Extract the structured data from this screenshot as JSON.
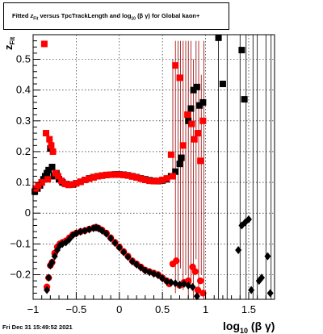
{
  "canvas": {
    "title": "Fitted  z_Fit  versus TpcTrackLength and log10(βγ) for Global kaon+",
    "title_parts": {
      "a": "Fitted ",
      "z": "z",
      "zsub": "Fit",
      "b": " versus TpcTrackLength and log",
      "logsub": "10",
      "c": "(β  γ) for Global kaon+"
    },
    "timestamp": "Fri Dec 31 15:49:52 2021"
  },
  "chart_data": {
    "type": "scatter",
    "title": "Fitted z_Fit versus TpcTrackLength and log10(βγ) for Global kaon+",
    "xlabel": "log10 (β γ)",
    "xlabel_parts": {
      "main": "log",
      "sub": "10",
      "tail": " (β γ)"
    },
    "ylabel": "z_Fit",
    "ylabel_parts": {
      "main": "z",
      "sub": "Fit"
    },
    "xlim": [
      -1.0,
      1.8
    ],
    "ylim": [
      -0.28,
      0.58
    ],
    "xticks": [
      -1,
      -0.5,
      0,
      0.5,
      1,
      1.5
    ],
    "xtick_labels": [
      "−1",
      "−0.5",
      "0",
      "0.5",
      "1",
      "1.5"
    ],
    "yticks": [
      -0.2,
      -0.1,
      0,
      0.1,
      0.2,
      0.3,
      0.4,
      0.5
    ],
    "ytick_labels": [
      "−0.2",
      "−0.1",
      "0",
      "0.1",
      "0.2",
      "0.3",
      "0.4",
      "0.5"
    ],
    "grid": true,
    "colors": {
      "black": "#000000",
      "red": "#ff0000",
      "dark_red": "#990000"
    },
    "series": [
      {
        "marker": "square",
        "color": "#000000",
        "x": [
          -0.98,
          -0.95,
          -0.92,
          -0.9,
          -0.88,
          -0.86,
          -0.84,
          -0.82,
          -0.8,
          -0.78,
          -0.76,
          -0.73,
          -0.7,
          -0.66,
          -0.62,
          -0.58,
          -0.54,
          -0.5,
          -0.45,
          -0.4,
          -0.35,
          -0.3,
          -0.25,
          -0.2,
          -0.15,
          -0.1,
          -0.05,
          0.0,
          0.05,
          0.1,
          0.15,
          0.2,
          0.25,
          0.3,
          0.35,
          0.4,
          0.45,
          0.5,
          0.55,
          0.6,
          0.65,
          0.7,
          0.72,
          0.8,
          0.83,
          0.86,
          0.9,
          0.93,
          0.97,
          1.15,
          1.2,
          1.42,
          1.45
        ],
        "y": [
          0.07,
          0.08,
          0.09,
          0.1,
          0.11,
          0.12,
          0.13,
          0.14,
          0.21,
          0.15,
          0.12,
          0.13,
          0.11,
          0.1,
          0.095,
          0.092,
          0.093,
          0.097,
          0.102,
          0.108,
          0.113,
          0.117,
          0.12,
          0.122,
          0.124,
          0.125,
          0.126,
          0.126,
          0.125,
          0.123,
          0.12,
          0.117,
          0.113,
          0.11,
          0.107,
          0.105,
          0.104,
          0.106,
          0.11,
          0.12,
          0.135,
          0.16,
          0.18,
          0.3,
          0.34,
          0.4,
          0.41,
          0.35,
          0.36,
          0.57,
          0.42,
          0.53,
          0.37
        ]
      },
      {
        "marker": "square",
        "color": "#ff0000",
        "x": [
          -0.97,
          -0.94,
          -0.9,
          -0.87,
          -0.85,
          -0.83,
          -0.81,
          -0.79,
          -0.77,
          -0.74,
          -0.71,
          -0.67,
          -0.63,
          -0.59,
          -0.55,
          -0.5,
          -0.45,
          -0.4,
          -0.35,
          -0.3,
          -0.25,
          -0.2,
          -0.15,
          -0.1,
          -0.05,
          0.0,
          0.05,
          0.1,
          0.15,
          0.2,
          0.25,
          0.3,
          0.35,
          0.4,
          0.45,
          0.5,
          0.55,
          0.6,
          0.62,
          0.65,
          0.7,
          0.74,
          0.79,
          0.84,
          0.87,
          0.91,
          0.94,
          0.97
        ],
        "y": [
          0.08,
          0.09,
          0.1,
          0.55,
          0.26,
          0.11,
          0.24,
          0.22,
          0.2,
          0.13,
          0.12,
          0.105,
          0.095,
          0.092,
          0.093,
          0.097,
          0.102,
          0.108,
          0.112,
          0.116,
          0.12,
          0.122,
          0.124,
          0.125,
          0.125,
          0.125,
          0.124,
          0.122,
          0.119,
          0.116,
          0.112,
          0.108,
          0.105,
          0.104,
          0.105,
          0.108,
          0.113,
          0.19,
          0.12,
          0.48,
          0.44,
          0.22,
          0.32,
          0.29,
          0.24,
          0.26,
          0.17,
          0.3
        ]
      },
      {
        "marker": "circle",
        "color": "#ff0000",
        "x": [
          -0.84,
          -0.82,
          -0.8,
          -0.78,
          -0.75,
          -0.72,
          -0.69,
          -0.66,
          -0.62,
          -0.58,
          -0.54,
          -0.5,
          -0.45,
          -0.4,
          -0.35,
          -0.3,
          -0.27,
          -0.24,
          -0.2,
          -0.15,
          -0.1,
          -0.05,
          0.0,
          0.05,
          0.1,
          0.15,
          0.2,
          0.25,
          0.3,
          0.35,
          0.4,
          0.45,
          0.5,
          0.55,
          0.58,
          0.62,
          0.66,
          0.7,
          0.75,
          0.8,
          0.85,
          0.88,
          0.91,
          0.94,
          0.97
        ],
        "y": [
          -0.24,
          -0.21,
          -0.17,
          -0.16,
          -0.13,
          -0.11,
          -0.1,
          -0.095,
          -0.09,
          -0.08,
          -0.07,
          -0.065,
          -0.06,
          -0.057,
          -0.052,
          -0.048,
          -0.046,
          -0.049,
          -0.055,
          -0.065,
          -0.08,
          -0.095,
          -0.11,
          -0.125,
          -0.14,
          -0.155,
          -0.165,
          -0.175,
          -0.185,
          -0.19,
          -0.195,
          -0.2,
          -0.21,
          -0.22,
          -0.23,
          -0.165,
          -0.155,
          -0.235,
          -0.225,
          -0.22,
          -0.175,
          -0.19,
          -0.25,
          -0.22,
          -0.26
        ]
      },
      {
        "marker": "diamond",
        "color": "#000000",
        "x": [
          -0.84,
          -0.82,
          -0.8,
          -0.78,
          -0.75,
          -0.72,
          -0.69,
          -0.66,
          -0.62,
          -0.58,
          -0.54,
          -0.5,
          -0.45,
          -0.4,
          -0.35,
          -0.3,
          -0.27,
          -0.24,
          -0.2,
          -0.15,
          -0.1,
          -0.05,
          0.0,
          0.05,
          0.1,
          0.15,
          0.2,
          0.25,
          0.3,
          0.35,
          0.4,
          0.45,
          0.5,
          0.55,
          0.6,
          0.65,
          0.7,
          0.75,
          0.8,
          0.85,
          0.9,
          1.38,
          1.42,
          1.46,
          1.5,
          1.53,
          1.62,
          1.65,
          1.72,
          1.75
        ],
        "y": [
          -0.25,
          -0.21,
          -0.17,
          -0.16,
          -0.14,
          -0.12,
          -0.105,
          -0.1,
          -0.095,
          -0.085,
          -0.072,
          -0.066,
          -0.06,
          -0.057,
          -0.053,
          -0.049,
          -0.047,
          -0.05,
          -0.057,
          -0.067,
          -0.082,
          -0.097,
          -0.112,
          -0.127,
          -0.142,
          -0.157,
          -0.167,
          -0.177,
          -0.187,
          -0.192,
          -0.197,
          -0.202,
          -0.212,
          -0.222,
          -0.225,
          -0.228,
          -0.232,
          -0.23,
          -0.235,
          -0.24,
          -0.27,
          -0.12,
          -0.04,
          -0.03,
          -0.02,
          -0.25,
          -0.22,
          -0.21,
          -0.14,
          -0.26
        ]
      }
    ],
    "errorbars": {
      "red": [
        [
          0.62,
          0.12,
          0.5
        ],
        [
          0.65,
          -0.26,
          0.56
        ],
        [
          0.68,
          -0.22,
          0.56
        ],
        [
          0.71,
          -0.18,
          0.56
        ],
        [
          0.74,
          -0.25,
          0.56
        ],
        [
          0.77,
          -0.2,
          0.56
        ],
        [
          0.8,
          -0.28,
          0.56
        ],
        [
          0.83,
          -0.23,
          0.56
        ],
        [
          0.86,
          -0.28,
          0.5
        ],
        [
          0.89,
          -0.15,
          0.56
        ],
        [
          0.92,
          -0.28,
          0.56
        ],
        [
          0.95,
          -0.2,
          0.45
        ],
        [
          0.98,
          -0.28,
          0.56
        ]
      ],
      "black": [
        [
          1.15,
          -0.28,
          0.58
        ],
        [
          1.25,
          -0.28,
          0.58
        ],
        [
          1.4,
          -0.28,
          0.58
        ],
        [
          1.47,
          -0.28,
          0.58
        ],
        [
          1.55,
          -0.28,
          0.58
        ],
        [
          1.6,
          -0.28,
          0.58
        ],
        [
          1.7,
          -0.28,
          0.58
        ],
        [
          1.76,
          -0.28,
          0.58
        ]
      ]
    }
  }
}
